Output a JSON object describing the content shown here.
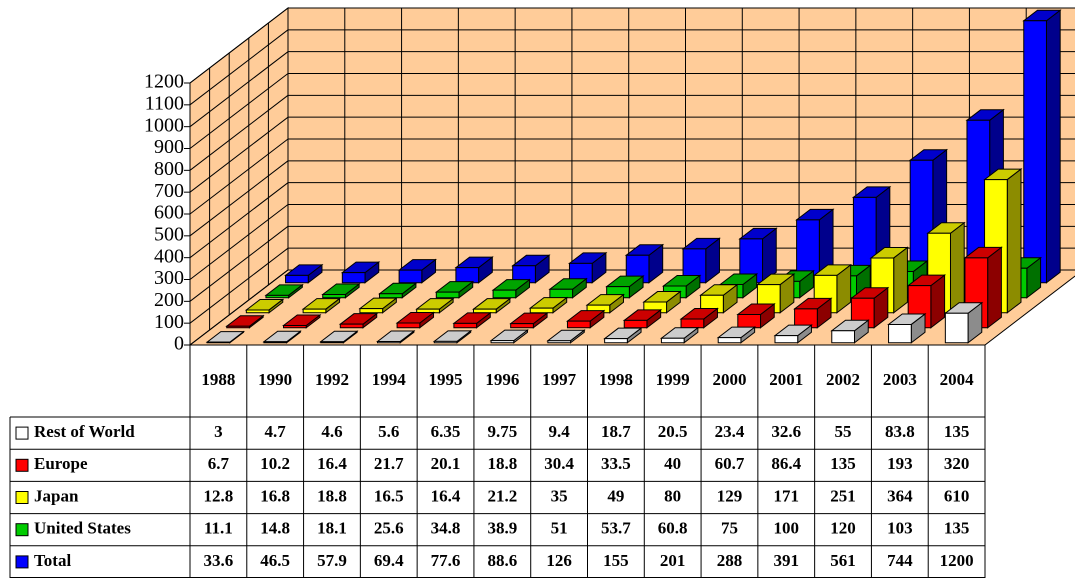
{
  "chart_data": {
    "type": "bar",
    "categories": [
      "1988",
      "1990",
      "1992",
      "1994",
      "1995",
      "1996",
      "1997",
      "1998",
      "1999",
      "2000",
      "2001",
      "2002",
      "2003",
      "2004"
    ],
    "series": [
      {
        "name": "Rest of World",
        "color": "#ffffff",
        "values": [
          3,
          4.7,
          4.6,
          5.6,
          6.35,
          9.75,
          9.4,
          18.7,
          20.5,
          23.4,
          32.6,
          55,
          83.8,
          135
        ]
      },
      {
        "name": "Europe",
        "color": "#ff0000",
        "values": [
          6.7,
          10.2,
          16.4,
          21.7,
          20.1,
          18.8,
          30.4,
          33.5,
          40,
          60.7,
          86.4,
          135,
          193,
          320
        ]
      },
      {
        "name": "Japan",
        "color": "#ffff00",
        "values": [
          12.8,
          16.8,
          18.8,
          16.5,
          16.4,
          21.2,
          35,
          49,
          80,
          129,
          171,
          251,
          364,
          610
        ]
      },
      {
        "name": "United States",
        "color": "#00cc00",
        "values": [
          11.1,
          14.8,
          18.1,
          25.6,
          34.8,
          38.9,
          51,
          53.7,
          60.8,
          75,
          100,
          120,
          103,
          135
        ]
      },
      {
        "name": "Total",
        "color": "#0000ff",
        "values": [
          33.6,
          46.5,
          57.9,
          69.4,
          77.6,
          88.6,
          126,
          155,
          201,
          288,
          391,
          561,
          744,
          1200
        ]
      }
    ],
    "ylim": [
      0,
      1200
    ],
    "yticks": [
      0,
      100,
      200,
      300,
      400,
      500,
      600,
      700,
      800,
      900,
      1000,
      1100,
      1200
    ],
    "grid": true
  }
}
